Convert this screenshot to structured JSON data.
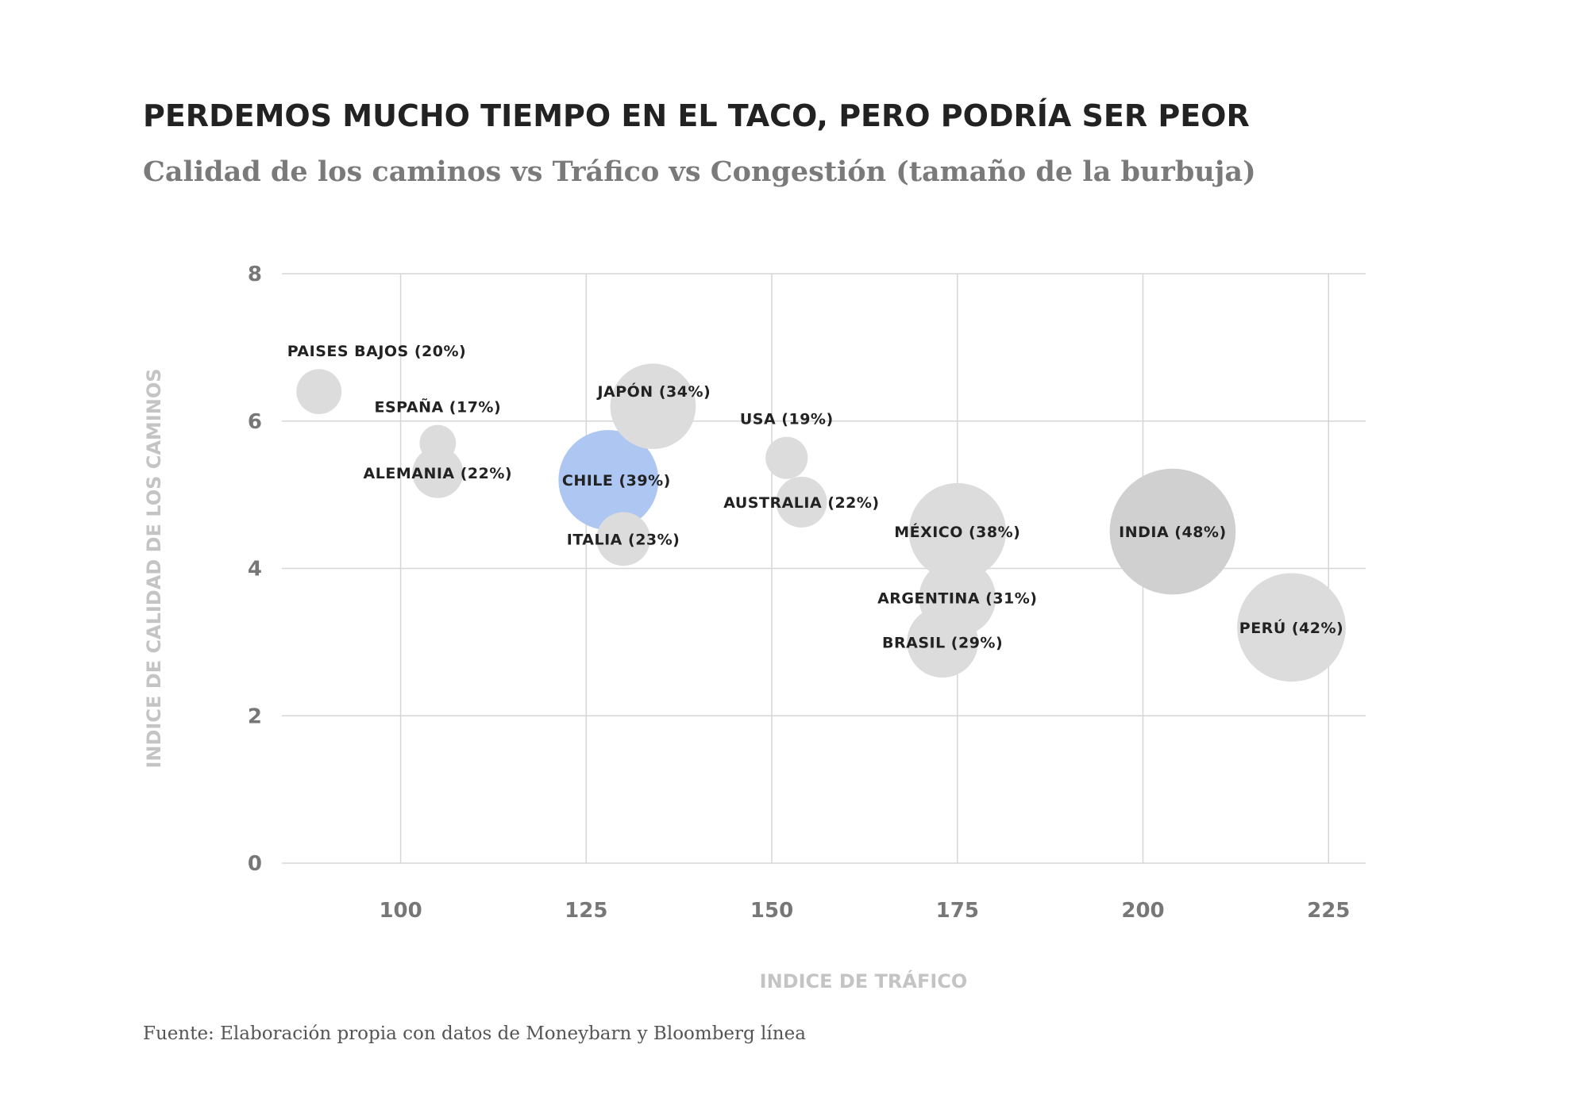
{
  "chart_data": {
    "type": "scatter",
    "title": "PERDEMOS MUCHO TIEMPO EN EL TACO, PERO PODRÍA SER PEOR",
    "subtitle": "Calidad de los caminos vs Tráfico vs Congestión (tamaño de la burbuja)",
    "xlabel": "INDICE DE TRÁFICO",
    "ylabel": "INDICE DE CALIDAD DE LOS CAMINOS",
    "xlim": [
      84,
      230
    ],
    "ylim": [
      0,
      8
    ],
    "xticks": [
      100,
      125,
      150,
      175,
      200,
      225
    ],
    "yticks": [
      0,
      2,
      4,
      6,
      8
    ],
    "grid": true,
    "size_variable": "Congestión (%)",
    "highlight_color": "#aec6f2",
    "default_color": "#dcdcdc",
    "points": [
      {
        "name": "PAISES BAJOS (20%)",
        "x": 89,
        "y": 6.4,
        "congestion": 20,
        "label_pos": "above-right"
      },
      {
        "name": "ESPAÑA (17%)",
        "x": 105,
        "y": 5.7,
        "congestion": 17,
        "label_pos": "above"
      },
      {
        "name": "ALEMANIA (22%)",
        "x": 105,
        "y": 5.3,
        "congestion": 22,
        "label_pos": "center"
      },
      {
        "name": "JAPÓN (34%)",
        "x": 134,
        "y": 6.2,
        "congestion": 34,
        "label_pos": "above-left"
      },
      {
        "name": "CHILE (39%)",
        "x": 128,
        "y": 5.2,
        "congestion": 39,
        "label_pos": "center-right",
        "highlight": true
      },
      {
        "name": "ITALIA (23%)",
        "x": 130,
        "y": 4.4,
        "congestion": 23,
        "label_pos": "center"
      },
      {
        "name": "USA (19%)",
        "x": 152,
        "y": 5.5,
        "congestion": 19,
        "label_pos": "above"
      },
      {
        "name": "AUSTRALIA (22%)",
        "x": 154,
        "y": 4.9,
        "congestion": 22,
        "label_pos": "center"
      },
      {
        "name": "MÉXICO (38%)",
        "x": 175,
        "y": 4.5,
        "congestion": 38,
        "label_pos": "center"
      },
      {
        "name": "INDIA (48%)",
        "x": 204,
        "y": 4.5,
        "congestion": 48,
        "label_pos": "center",
        "darker": true
      },
      {
        "name": "ARGENTINA (31%)",
        "x": 175,
        "y": 3.6,
        "congestion": 31,
        "label_pos": "center"
      },
      {
        "name": "BRASIL (29%)",
        "x": 173,
        "y": 3.0,
        "congestion": 29,
        "label_pos": "center"
      },
      {
        "name": "PERÚ (42%)",
        "x": 220,
        "y": 3.2,
        "congestion": 42,
        "label_pos": "center"
      }
    ]
  },
  "source": "Fuente: Elaboración propia con datos de Moneybarn y Bloomberg línea"
}
